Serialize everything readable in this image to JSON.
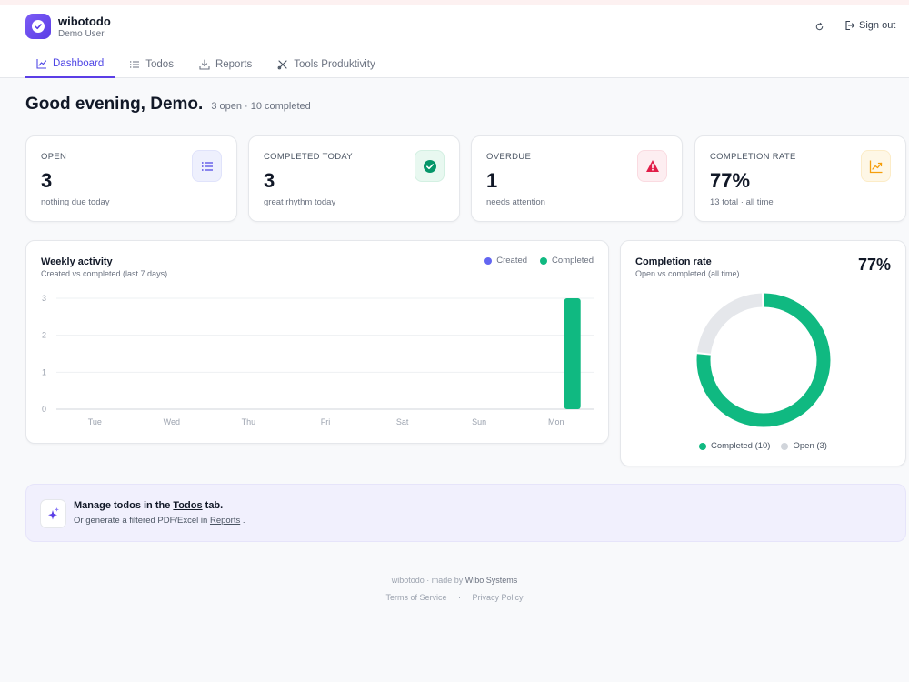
{
  "app": {
    "name": "wibotodo",
    "user": "Demo User"
  },
  "header": {
    "sign_out": "Sign out"
  },
  "tabs": [
    {
      "label": "Dashboard",
      "icon": "chart-line-icon",
      "active": true
    },
    {
      "label": "Todos",
      "icon": "list-icon",
      "active": false
    },
    {
      "label": "Reports",
      "icon": "download-icon",
      "active": false
    },
    {
      "label": "Tools Produktivity",
      "icon": "tools-icon",
      "active": false
    }
  ],
  "greeting": {
    "title": "Good evening, Demo.",
    "summary": "3 open · 10 completed"
  },
  "stats": [
    {
      "label": "OPEN",
      "value": "3",
      "sub": "nothing due today",
      "icon": "list-icon",
      "accent": "#4f46e5"
    },
    {
      "label": "COMPLETED TODAY",
      "value": "3",
      "sub": "great rhythm today",
      "icon": "check-circle-icon",
      "accent": "#059669"
    },
    {
      "label": "OVERDUE",
      "value": "1",
      "sub": "needs attention",
      "icon": "warning-icon",
      "accent": "#e11d48"
    },
    {
      "label": "COMPLETION RATE",
      "value": "77%",
      "sub": "13 total · all time",
      "icon": "trend-up-icon",
      "accent": "#f59e0b"
    }
  ],
  "weekly": {
    "title": "Weekly activity",
    "subtitle": "Created vs completed (last 7 days)",
    "legend": [
      "Created",
      "Completed"
    ],
    "colors": {
      "created": "#6366f1",
      "completed": "#10b981"
    }
  },
  "chart_data": [
    {
      "type": "bar",
      "categories": [
        "Tue",
        "Wed",
        "Thu",
        "Fri",
        "Sat",
        "Sun",
        "Mon"
      ],
      "series": [
        {
          "name": "Created",
          "values": [
            0,
            0,
            0,
            0,
            0,
            0,
            0
          ]
        },
        {
          "name": "Completed",
          "values": [
            0,
            0,
            0,
            0,
            0,
            0,
            3
          ]
        }
      ],
      "title": "Weekly activity",
      "subtitle": "Created vs completed (last 7 days)",
      "yticks": [
        "0",
        "1",
        "2",
        "3"
      ],
      "ylim": [
        0,
        3
      ],
      "grid": true,
      "legend_position": "top-right"
    },
    {
      "type": "pie",
      "title": "Completion rate",
      "subtitle": "Open vs completed (all time)",
      "center_value": "77%",
      "slices": [
        {
          "name": "Completed",
          "value": 10,
          "label": "Completed (10)",
          "color": "#10b981"
        },
        {
          "name": "Open",
          "value": 3,
          "label": "Open (3)",
          "color": "#e5e7eb"
        }
      ]
    }
  ],
  "banner": {
    "pre": "Manage todos in the ",
    "link1": "Todos",
    "post": " tab.",
    "line2_pre": "Or generate a filtered PDF/Excel in ",
    "link2": "Reports",
    "line2_post": " ."
  },
  "footer": {
    "made_by": "wibotodo · made by ",
    "company": "Wibo Systems",
    "terms": "Terms of Service",
    "sep": "·",
    "privacy": "Privacy Policy"
  }
}
